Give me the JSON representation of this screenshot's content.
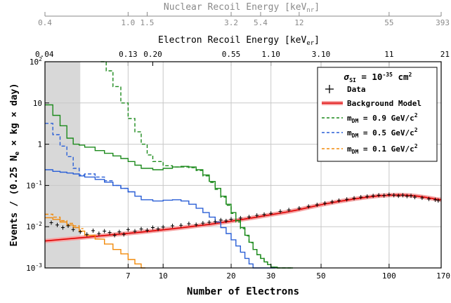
{
  "chart_data": {
    "type": "line",
    "xscale": "log",
    "yscale": "log",
    "xlabel": "Number of Electrons",
    "ylabel": "Events / (0.25 N",
    "ylabel_sub": "e",
    "ylabel_tail": " × kg × day)",
    "xlim": [
      3,
      170
    ],
    "ylim": [
      0.001,
      100
    ],
    "grid": true,
    "legend_position": "top-right",
    "shaded_region": {
      "x": [
        3,
        4.3
      ]
    },
    "x_ticks": [
      {
        "v": 7,
        "label": "7"
      },
      {
        "v": 10,
        "label": "10"
      },
      {
        "v": 20,
        "label": "20"
      },
      {
        "v": 30,
        "label": "30"
      },
      {
        "v": 50,
        "label": "50"
      },
      {
        "v": 100,
        "label": "100"
      },
      {
        "v": 170,
        "label": "170"
      }
    ],
    "y_ticks": [
      {
        "v": 0.001,
        "base": "10",
        "exp": "-3"
      },
      {
        "v": 0.01,
        "base": "10",
        "exp": "-2"
      },
      {
        "v": 0.1,
        "base": "10",
        "exp": "-1"
      },
      {
        "v": 1,
        "base": "1",
        "exp": ""
      },
      {
        "v": 10,
        "base": "10",
        "exp": ""
      },
      {
        "v": 100,
        "base": "10",
        "exp": "2"
      }
    ],
    "top_axis_electron": {
      "label": "Electron Recoil Energy [keV",
      "label_sub": "er",
      "label_end": "]",
      "ticks": [
        {
          "v": 3,
          "label": "0.04"
        },
        {
          "v": 7,
          "label": "0.13"
        },
        {
          "v": 9,
          "label": "0.20"
        },
        {
          "v": 20,
          "label": "0.55"
        },
        {
          "v": 30,
          "label": "1.10"
        },
        {
          "v": 50,
          "label": "3.10"
        },
        {
          "v": 100,
          "label": "11"
        },
        {
          "v": 170,
          "label": "21"
        }
      ]
    },
    "top_axis_nuclear": {
      "label": "Nuclear Recoil Energy [keV",
      "label_sub": "nr",
      "label_end": "]",
      "ticks": [
        {
          "v": 3,
          "label": "0.4"
        },
        {
          "v": 7,
          "label": "1.0"
        },
        {
          "v": 8.5,
          "label": "1.5"
        },
        {
          "v": 20,
          "label": "3.2"
        },
        {
          "v": 27,
          "label": "5.4"
        },
        {
          "v": 40,
          "label": "12"
        },
        {
          "v": 100,
          "label": "55"
        },
        {
          "v": 170,
          "label": "393"
        }
      ]
    },
    "legend": {
      "title_sym": "σ",
      "title_sub": "SI",
      "title_mid": " = 10",
      "title_exp": "-35",
      "title_end": " cm",
      "title_exp2": "2",
      "entries": [
        {
          "id": "data",
          "label": "Data"
        },
        {
          "id": "bg",
          "label": "Background Model"
        },
        {
          "id": "dm09",
          "pre": "m",
          "sub": "DM",
          "mid": " = 0.9 GeV/c",
          "sup": "2"
        },
        {
          "id": "dm05",
          "pre": "m",
          "sub": "DM",
          "mid": " = 0.5 GeV/c",
          "sup": "2"
        },
        {
          "id": "dm01",
          "pre": "m",
          "sub": "DM",
          "mid": " = 0.1 GeV/c",
          "sup": "2"
        }
      ]
    },
    "series": [
      {
        "id": "data",
        "color": "#000000",
        "x": [
          3.2,
          3.4,
          3.6,
          3.8,
          4.0,
          4.3,
          4.6,
          4.9,
          5.2,
          5.5,
          5.8,
          6.1,
          6.4,
          6.7,
          7.0,
          7.5,
          8.0,
          8.5,
          9.0,
          9.5,
          10,
          11,
          12,
          13,
          14,
          15,
          16,
          17,
          18,
          19,
          20,
          22,
          24,
          26,
          28,
          30,
          33,
          36,
          40,
          44,
          48,
          52,
          56,
          60,
          65,
          70,
          75,
          80,
          85,
          90,
          95,
          100,
          105,
          110,
          115,
          120,
          125,
          130,
          140,
          150,
          160,
          165
        ],
        "y": [
          0.0125,
          0.011,
          0.0095,
          0.0105,
          0.0085,
          0.0075,
          0.0065,
          0.008,
          0.0068,
          0.0078,
          0.0072,
          0.0062,
          0.0075,
          0.0065,
          0.0085,
          0.0078,
          0.0088,
          0.0082,
          0.0095,
          0.0088,
          0.0098,
          0.0105,
          0.0108,
          0.0118,
          0.0112,
          0.0122,
          0.0128,
          0.0132,
          0.0145,
          0.0138,
          0.0152,
          0.0162,
          0.0172,
          0.0188,
          0.0198,
          0.021,
          0.0235,
          0.0255,
          0.028,
          0.031,
          0.034,
          0.037,
          0.04,
          0.043,
          0.046,
          0.049,
          0.052,
          0.054,
          0.056,
          0.058,
          0.057,
          0.06,
          0.058,
          0.056,
          0.058,
          0.055,
          0.056,
          0.052,
          0.05,
          0.047,
          0.045,
          0.043
        ]
      },
      {
        "id": "bg",
        "color": "#e00000",
        "x": [
          3.0,
          4.0,
          5.0,
          6.0,
          7.0,
          8.0,
          9.0,
          10,
          12,
          14,
          16,
          18,
          20,
          25,
          30,
          35,
          40,
          45,
          50,
          55,
          60,
          65,
          70,
          80,
          90,
          100,
          110,
          120,
          130,
          140,
          150,
          160,
          170
        ],
        "y": [
          0.0045,
          0.0052,
          0.0058,
          0.0064,
          0.0069,
          0.0074,
          0.0079,
          0.0084,
          0.0094,
          0.0104,
          0.0114,
          0.0125,
          0.0136,
          0.0165,
          0.0195,
          0.0225,
          0.026,
          0.03,
          0.034,
          0.0375,
          0.041,
          0.044,
          0.047,
          0.052,
          0.056,
          0.058,
          0.059,
          0.058,
          0.056,
          0.053,
          0.05,
          0.047,
          0.045
        ]
      },
      {
        "id": "dm09",
        "color": "#1c8a1c",
        "style": "solid",
        "step": true,
        "x": [
          3.0,
          3.25,
          3.5,
          3.75,
          4.0,
          4.25,
          4.5,
          5.0,
          5.5,
          6.0,
          6.5,
          7.0,
          7.5,
          8.0,
          9.0,
          10,
          11,
          12,
          13,
          14,
          15,
          16,
          17,
          18,
          19,
          20,
          21,
          22,
          23,
          24,
          25,
          26,
          27,
          28,
          29,
          30,
          32,
          34,
          36
        ],
        "y": [
          9.0,
          5.0,
          2.8,
          1.4,
          1.0,
          0.95,
          0.85,
          0.7,
          0.6,
          0.52,
          0.45,
          0.38,
          0.31,
          0.26,
          0.24,
          0.26,
          0.28,
          0.29,
          0.28,
          0.24,
          0.18,
          0.125,
          0.085,
          0.055,
          0.035,
          0.022,
          0.014,
          0.0095,
          0.0062,
          0.0042,
          0.0028,
          0.0021,
          0.0017,
          0.0014,
          0.0012,
          0.00105,
          0.001,
          0.001,
          0.001
        ]
      },
      {
        "id": "dm09s",
        "color": "#1c8a1c",
        "style": "dashed",
        "step": true,
        "x": [
          5.3,
          5.6,
          6.0,
          6.5,
          7.0,
          7.5,
          8.0,
          8.5,
          9.0,
          10,
          11,
          12,
          13,
          14,
          15,
          16,
          17,
          18,
          19,
          20,
          21,
          22,
          23,
          24,
          25,
          26,
          27,
          28,
          29,
          30,
          32,
          34,
          36
        ],
        "y": [
          100,
          60,
          25,
          10,
          4.2,
          2.0,
          1.0,
          0.55,
          0.38,
          0.3,
          0.28,
          0.28,
          0.27,
          0.23,
          0.17,
          0.118,
          0.08,
          0.052,
          0.033,
          0.021,
          0.013,
          0.009,
          0.006,
          0.0041,
          0.0028,
          0.0021,
          0.0017,
          0.0014,
          0.0012,
          0.00105,
          0.001,
          0.001,
          0.001
        ]
      },
      {
        "id": "dm05",
        "color": "#2a5fd6",
        "style": "solid",
        "step": true,
        "x": [
          3.0,
          3.25,
          3.5,
          3.75,
          4.0,
          4.25,
          4.5,
          5.0,
          5.5,
          6.0,
          6.5,
          7.0,
          7.5,
          8.0,
          9.0,
          10,
          11,
          12,
          13,
          14,
          15,
          16,
          17,
          18,
          19,
          20,
          21,
          22,
          23,
          24,
          25,
          26,
          27,
          28,
          30
        ],
        "y": [
          0.24,
          0.22,
          0.21,
          0.2,
          0.19,
          0.17,
          0.16,
          0.14,
          0.12,
          0.1,
          0.085,
          0.07,
          0.055,
          0.045,
          0.042,
          0.044,
          0.045,
          0.042,
          0.035,
          0.028,
          0.022,
          0.017,
          0.013,
          0.0095,
          0.0068,
          0.0048,
          0.0034,
          0.0024,
          0.0017,
          0.00125,
          0.001,
          0.001,
          0.001,
          0.001,
          0.001
        ]
      },
      {
        "id": "dm05s",
        "color": "#2a5fd6",
        "style": "dashed",
        "step": true,
        "x": [
          3.0,
          3.25,
          3.5,
          3.75,
          4.0,
          4.25,
          4.5,
          5.0,
          5.5,
          6.0,
          6.5,
          7.0
        ],
        "y": [
          3.2,
          1.7,
          0.9,
          0.5,
          0.26,
          0.18,
          0.19,
          0.16,
          0.13,
          0.1,
          0.085,
          0.07
        ]
      },
      {
        "id": "dm01",
        "color": "#f28a0a",
        "style": "solid",
        "step": true,
        "x": [
          3.0,
          3.25,
          3.5,
          3.75,
          4.0,
          4.25,
          4.5,
          5.0,
          5.5,
          6.0,
          6.5,
          7.0,
          7.5,
          8.0
        ],
        "y": [
          0.0165,
          0.015,
          0.013,
          0.011,
          0.0095,
          0.0078,
          0.0062,
          0.005,
          0.0038,
          0.0028,
          0.0022,
          0.0016,
          0.00125,
          0.001
        ]
      },
      {
        "id": "dm01s",
        "color": "#f28a0a",
        "style": "dashed",
        "step": true,
        "x": [
          3.0,
          3.25,
          3.5,
          3.75,
          4.0,
          4.25
        ],
        "y": [
          0.02,
          0.017,
          0.014,
          0.012,
          0.0105,
          0.009
        ]
      }
    ]
  }
}
